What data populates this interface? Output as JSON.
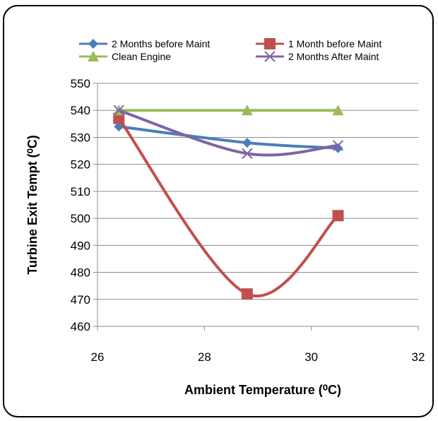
{
  "chart_data": {
    "type": "line",
    "title": "",
    "xlabel": "Ambient Temperature (⁰C)",
    "ylabel": "Turbine Exit Tempt (⁰C)",
    "xlim": [
      26,
      32
    ],
    "ylim": [
      460,
      550
    ],
    "x_ticks": [
      "26",
      "28",
      "30",
      "32"
    ],
    "y_ticks": [
      "460",
      "470",
      "480",
      "490",
      "500",
      "510",
      "520",
      "530",
      "540",
      "550"
    ],
    "grid": "horizontal",
    "legend_position": "top",
    "series": [
      {
        "name": "2 Months before Maint",
        "color": "#4a7ebb",
        "marker": "diamond",
        "x": [
          26.4,
          28.8,
          30.5
        ],
        "y": [
          534,
          528,
          526
        ]
      },
      {
        "name": "1 Month before Maint",
        "color": "#c0504d",
        "marker": "square",
        "x": [
          26.4,
          28.8,
          30.5
        ],
        "y": [
          537,
          472,
          501
        ]
      },
      {
        "name": "Clean Engine",
        "color": "#9bbb59",
        "marker": "triangle",
        "x": [
          26.4,
          28.8,
          30.5
        ],
        "y": [
          540,
          540,
          540
        ]
      },
      {
        "name": "2 Months After Maint",
        "color": "#8064a2",
        "marker": "x",
        "x": [
          26.4,
          28.8,
          30.5
        ],
        "y": [
          540,
          524,
          527
        ]
      }
    ]
  }
}
